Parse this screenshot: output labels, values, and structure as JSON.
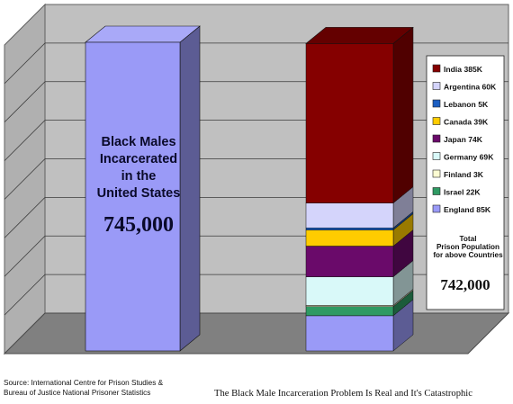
{
  "chart_data": {
    "type": "bar",
    "stacked": true,
    "categories": [
      "Black Males Incarcerated in the United States",
      "Total Prison Population for above Countries"
    ],
    "left_bar": {
      "label_lines": [
        "Black Males",
        "Incarcerated",
        "in the",
        "United States"
      ],
      "value_text": "745,000",
      "value": 745000,
      "color": "#9a9af7"
    },
    "right_bar": {
      "segments": [
        {
          "name": "England",
          "value": 85000,
          "color": "#9a9af7"
        },
        {
          "name": "Israel",
          "value": 22000,
          "color": "#2f9a63"
        },
        {
          "name": "Finland",
          "value": 3000,
          "color": "#fdfcd2"
        },
        {
          "name": "Germany",
          "value": 69000,
          "color": "#d9f9f9"
        },
        {
          "name": "Japan",
          "value": 74000,
          "color": "#6a0a6a"
        },
        {
          "name": "Canada",
          "value": 39000,
          "color": "#ffcc00"
        },
        {
          "name": "Lebanon",
          "value": 5000,
          "color": "#1c5fc2"
        },
        {
          "name": "Argentina",
          "value": 60000,
          "color": "#d4d4fb"
        },
        {
          "name": "India",
          "value": 385000,
          "color": "#850000"
        }
      ]
    },
    "legend": {
      "position": "right",
      "items": [
        {
          "label": "India 385K",
          "color": "#850000"
        },
        {
          "label": "Argentina 60K",
          "color": "#d4d4fb"
        },
        {
          "label": "Lebanon 5K",
          "color": "#1c5fc2"
        },
        {
          "label": "Canada 39K",
          "color": "#ffcc00"
        },
        {
          "label": "Japan 74K",
          "color": "#6a0a6a"
        },
        {
          "label": "Germany 69K",
          "color": "#d9f9f9"
        },
        {
          "label": "Finland 3K",
          "color": "#fdfcd2"
        },
        {
          "label": "Israel 22K",
          "color": "#2f9a63"
        },
        {
          "label": "England 85K",
          "color": "#9a9af7"
        }
      ],
      "total_label_lines": [
        "Total",
        "Prison Population",
        "for above Countries"
      ],
      "total_value_text": "742,000"
    },
    "ylim": [
      0,
      745000
    ],
    "grid": true,
    "three_d": true,
    "background": {
      "wall": "#c0c0c0",
      "floor": "#808080"
    }
  },
  "footer": {
    "source_line1": "Source: International Centre for Prison Studies &",
    "source_line2": "Bureau of Justice National Prisoner Statistics",
    "caption": "The Black Male Incarceration Problem Is Real and It's Catastrophic"
  }
}
